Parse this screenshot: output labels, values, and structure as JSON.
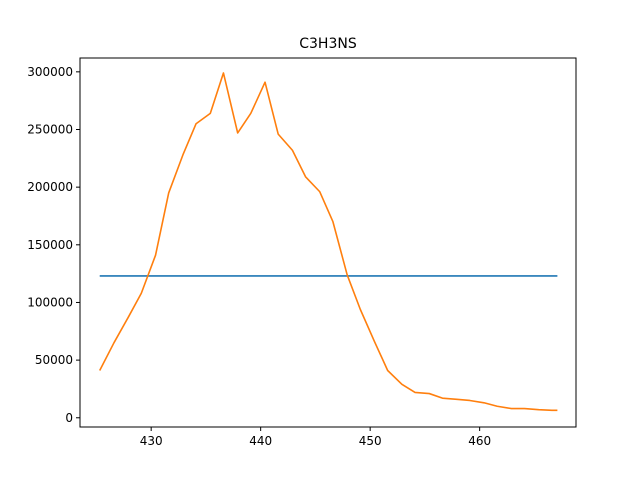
{
  "chart_data": {
    "type": "line",
    "title": "C3H3NS",
    "xlabel": "",
    "ylabel": "",
    "xlim": [
      423.5,
      468.8
    ],
    "ylim": [
      -8000,
      312000
    ],
    "xticks": [
      430,
      440,
      450,
      460
    ],
    "xtick_labels": [
      "430",
      "440",
      "450",
      "460"
    ],
    "yticks": [
      0,
      50000,
      100000,
      150000,
      200000,
      250000,
      300000
    ],
    "ytick_labels": [
      "0",
      "50000",
      "100000",
      "150000",
      "200000",
      "250000",
      "300000"
    ],
    "grid": false,
    "series": [
      {
        "color": "#1f77b4",
        "x": [
          425.3,
          467.1
        ],
        "y": [
          123000,
          123000
        ]
      },
      {
        "color": "#ff7f0e",
        "x": [
          425.3,
          426.6,
          427.9,
          429.1,
          430.4,
          431.6,
          432.9,
          434.1,
          435.4,
          436.6,
          437.9,
          439.1,
          440.4,
          441.6,
          442.9,
          444.1,
          445.4,
          446.6,
          447.9,
          449.1,
          450.4,
          451.6,
          452.9,
          454.1,
          455.4,
          456.6,
          457.9,
          459.1,
          460.4,
          461.6,
          462.9,
          464.1,
          465.4,
          466.6,
          467.1
        ],
        "y": [
          41000,
          65000,
          87000,
          108000,
          141000,
          195000,
          228000,
          255000,
          264000,
          299000,
          247000,
          264000,
          291000,
          246000,
          232000,
          209000,
          196000,
          170000,
          124000,
          94000,
          66000,
          41000,
          29000,
          22000,
          21000,
          17000,
          16000,
          15000,
          13000,
          10000,
          8000,
          8000,
          7000,
          6500,
          6500
        ]
      }
    ]
  }
}
